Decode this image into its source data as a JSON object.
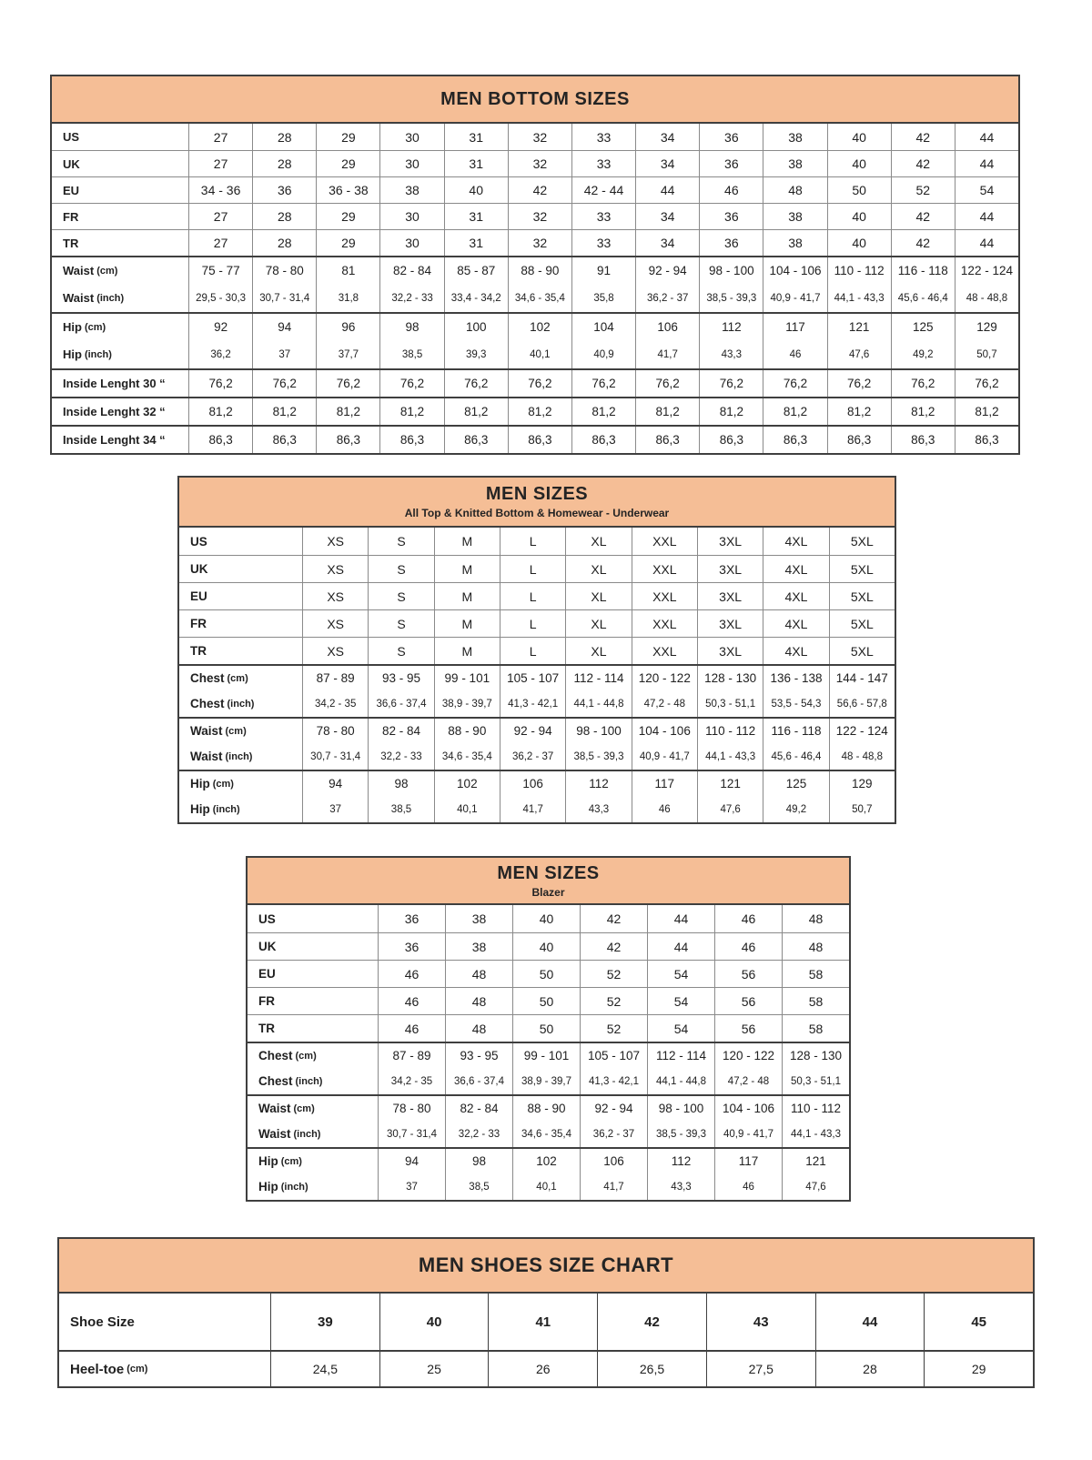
{
  "colors": {
    "header_bg": "#F5BE96",
    "text": "#212121",
    "border_dark": "#3f3f3f",
    "border_mid": "#8a8a8a"
  },
  "tables": [
    {
      "id": "men-bottom-sizes",
      "title": "MEN BOTTOM SIZES",
      "subtitle": "",
      "rows": [
        {
          "label": "US",
          "unit": "",
          "style": "size",
          "sep": "normal",
          "cells": [
            "27",
            "28",
            "29",
            "30",
            "31",
            "32",
            "33",
            "34",
            "36",
            "38",
            "40",
            "42",
            "44"
          ]
        },
        {
          "label": "UK",
          "unit": "",
          "style": "size",
          "sep": "normal",
          "cells": [
            "27",
            "28",
            "29",
            "30",
            "31",
            "32",
            "33",
            "34",
            "36",
            "38",
            "40",
            "42",
            "44"
          ]
        },
        {
          "label": "EU",
          "unit": "",
          "style": "size",
          "sep": "normal",
          "cells": [
            "34 - 36",
            "36",
            "36 - 38",
            "38",
            "40",
            "42",
            "42 - 44",
            "44",
            "46",
            "48",
            "50",
            "52",
            "54"
          ]
        },
        {
          "label": "FR",
          "unit": "",
          "style": "size",
          "sep": "normal",
          "cells": [
            "27",
            "28",
            "29",
            "30",
            "31",
            "32",
            "33",
            "34",
            "36",
            "38",
            "40",
            "42",
            "44"
          ]
        },
        {
          "label": "TR",
          "unit": "",
          "style": "size",
          "sep": "normal",
          "cells": [
            "27",
            "28",
            "29",
            "30",
            "31",
            "32",
            "33",
            "34",
            "36",
            "38",
            "40",
            "42",
            "44"
          ]
        },
        {
          "label": "Waist",
          "unit": "(cm)",
          "style": "cm",
          "sep": "thick",
          "cells": [
            "75 - 77",
            "78 - 80",
            "81",
            "82 - 84",
            "85 - 87",
            "88 - 90",
            "91",
            "92 - 94",
            "98 - 100",
            "104 - 106",
            "110 - 112",
            "116 - 118",
            "122 - 124"
          ]
        },
        {
          "label": "Waist",
          "unit": "(inch)",
          "style": "inch",
          "sep": "none",
          "cells": [
            "29,5 - 30,3",
            "30,7 - 31,4",
            "31,8",
            "32,2 - 33",
            "33,4 - 34,2",
            "34,6 - 35,4",
            "35,8",
            "36,2 - 37",
            "38,5 - 39,3",
            "40,9 - 41,7",
            "44,1 - 43,3",
            "45,6 - 46,4",
            "48 - 48,8"
          ]
        },
        {
          "label": "Hip",
          "unit": "(cm)",
          "style": "cm",
          "sep": "thick",
          "cells": [
            "92",
            "94",
            "96",
            "98",
            "100",
            "102",
            "104",
            "106",
            "112",
            "117",
            "121",
            "125",
            "129"
          ]
        },
        {
          "label": "Hip",
          "unit": "(inch)",
          "style": "inch",
          "sep": "none",
          "cells": [
            "36,2",
            "37",
            "37,7",
            "38,5",
            "39,3",
            "40,1",
            "40,9",
            "41,7",
            "43,3",
            "46",
            "47,6",
            "49,2",
            "50,7"
          ]
        },
        {
          "label": "Inside Lenght 30 “",
          "unit": "",
          "style": "cm",
          "sep": "thick",
          "cells": [
            "76,2",
            "76,2",
            "76,2",
            "76,2",
            "76,2",
            "76,2",
            "76,2",
            "76,2",
            "76,2",
            "76,2",
            "76,2",
            "76,2",
            "76,2"
          ]
        },
        {
          "label": "Inside Lenght 32 “",
          "unit": "",
          "style": "cm",
          "sep": "thick",
          "cells": [
            "81,2",
            "81,2",
            "81,2",
            "81,2",
            "81,2",
            "81,2",
            "81,2",
            "81,2",
            "81,2",
            "81,2",
            "81,2",
            "81,2",
            "81,2"
          ]
        },
        {
          "label": "Inside Lenght 34 “",
          "unit": "",
          "style": "cm",
          "sep": "thick",
          "cells": [
            "86,3",
            "86,3",
            "86,3",
            "86,3",
            "86,3",
            "86,3",
            "86,3",
            "86,3",
            "86,3",
            "86,3",
            "86,3",
            "86,3",
            "86,3"
          ]
        }
      ]
    },
    {
      "id": "men-sizes-top",
      "title": "MEN SIZES",
      "subtitle": "All Top & Knitted Bottom & Homewear - Underwear",
      "rows": [
        {
          "label": "US",
          "unit": "",
          "style": "size",
          "sep": "normal",
          "cells": [
            "XS",
            "S",
            "M",
            "L",
            "XL",
            "XXL",
            "3XL",
            "4XL",
            "5XL"
          ]
        },
        {
          "label": "UK",
          "unit": "",
          "style": "size",
          "sep": "normal",
          "cells": [
            "XS",
            "S",
            "M",
            "L",
            "XL",
            "XXL",
            "3XL",
            "4XL",
            "5XL"
          ]
        },
        {
          "label": "EU",
          "unit": "",
          "style": "size",
          "sep": "normal",
          "cells": [
            "XS",
            "S",
            "M",
            "L",
            "XL",
            "XXL",
            "3XL",
            "4XL",
            "5XL"
          ]
        },
        {
          "label": "FR",
          "unit": "",
          "style": "size",
          "sep": "normal",
          "cells": [
            "XS",
            "S",
            "M",
            "L",
            "XL",
            "XXL",
            "3XL",
            "4XL",
            "5XL"
          ]
        },
        {
          "label": "TR",
          "unit": "",
          "style": "size",
          "sep": "normal",
          "cells": [
            "XS",
            "S",
            "M",
            "L",
            "XL",
            "XXL",
            "3XL",
            "4XL",
            "5XL"
          ]
        },
        {
          "label": "Chest",
          "unit": "(cm)",
          "style": "cm",
          "sep": "thick",
          "cells": [
            "87 - 89",
            "93 - 95",
            "99 - 101",
            "105 - 107",
            "112 - 114",
            "120 - 122",
            "128 - 130",
            "136 - 138",
            "144 - 147"
          ]
        },
        {
          "label": "Chest",
          "unit": "(inch)",
          "style": "inch",
          "sep": "none",
          "cells": [
            "34,2 - 35",
            "36,6 - 37,4",
            "38,9 - 39,7",
            "41,3 - 42,1",
            "44,1 - 44,8",
            "47,2 - 48",
            "50,3 - 51,1",
            "53,5 - 54,3",
            "56,6 - 57,8"
          ]
        },
        {
          "label": "Waist",
          "unit": "(cm)",
          "style": "cm",
          "sep": "thick",
          "cells": [
            "78 - 80",
            "82 - 84",
            "88 - 90",
            "92 - 94",
            "98 - 100",
            "104 - 106",
            "110 - 112",
            "116 - 118",
            "122 - 124"
          ]
        },
        {
          "label": "Waist",
          "unit": "(inch)",
          "style": "inch",
          "sep": "none",
          "cells": [
            "30,7 - 31,4",
            "32,2 - 33",
            "34,6 - 35,4",
            "36,2 - 37",
            "38,5 - 39,3",
            "40,9 - 41,7",
            "44,1 - 43,3",
            "45,6 - 46,4",
            "48 - 48,8"
          ]
        },
        {
          "label": "Hip",
          "unit": "(cm)",
          "style": "cm",
          "sep": "thick",
          "cells": [
            "94",
            "98",
            "102",
            "106",
            "112",
            "117",
            "121",
            "125",
            "129"
          ]
        },
        {
          "label": "Hip",
          "unit": "(inch)",
          "style": "inch",
          "sep": "none",
          "cells": [
            "37",
            "38,5",
            "40,1",
            "41,7",
            "43,3",
            "46",
            "47,6",
            "49,2",
            "50,7"
          ]
        }
      ]
    },
    {
      "id": "men-sizes-blazer",
      "title": "MEN SIZES",
      "subtitle": "Blazer",
      "rows": [
        {
          "label": "US",
          "unit": "",
          "style": "size",
          "sep": "normal",
          "cells": [
            "36",
            "38",
            "40",
            "42",
            "44",
            "46",
            "48"
          ]
        },
        {
          "label": "UK",
          "unit": "",
          "style": "size",
          "sep": "normal",
          "cells": [
            "36",
            "38",
            "40",
            "42",
            "44",
            "46",
            "48"
          ]
        },
        {
          "label": "EU",
          "unit": "",
          "style": "size",
          "sep": "normal",
          "cells": [
            "46",
            "48",
            "50",
            "52",
            "54",
            "56",
            "58"
          ]
        },
        {
          "label": "FR",
          "unit": "",
          "style": "size",
          "sep": "normal",
          "cells": [
            "46",
            "48",
            "50",
            "52",
            "54",
            "56",
            "58"
          ]
        },
        {
          "label": "TR",
          "unit": "",
          "style": "size",
          "sep": "normal",
          "cells": [
            "46",
            "48",
            "50",
            "52",
            "54",
            "56",
            "58"
          ]
        },
        {
          "label": "Chest",
          "unit": "(cm)",
          "style": "cm",
          "sep": "thick",
          "cells": [
            "87 - 89",
            "93 - 95",
            "99 - 101",
            "105 - 107",
            "112 - 114",
            "120 - 122",
            "128 - 130"
          ]
        },
        {
          "label": "Chest",
          "unit": "(inch)",
          "style": "inch",
          "sep": "none",
          "cells": [
            "34,2 - 35",
            "36,6 - 37,4",
            "38,9 - 39,7",
            "41,3 - 42,1",
            "44,1 - 44,8",
            "47,2 - 48",
            "50,3 - 51,1"
          ]
        },
        {
          "label": "Waist",
          "unit": "(cm)",
          "style": "cm",
          "sep": "thick",
          "cells": [
            "78 - 80",
            "82 - 84",
            "88 - 90",
            "92 - 94",
            "98 - 100",
            "104 - 106",
            "110 - 112"
          ]
        },
        {
          "label": "Waist",
          "unit": "(inch)",
          "style": "inch",
          "sep": "none",
          "cells": [
            "30,7 - 31,4",
            "32,2 - 33",
            "34,6 - 35,4",
            "36,2 - 37",
            "38,5 - 39,3",
            "40,9 - 41,7",
            "44,1 - 43,3"
          ]
        },
        {
          "label": "Hip",
          "unit": "(cm)",
          "style": "cm",
          "sep": "thick",
          "cells": [
            "94",
            "98",
            "102",
            "106",
            "112",
            "117",
            "121"
          ]
        },
        {
          "label": "Hip",
          "unit": "(inch)",
          "style": "inch",
          "sep": "none",
          "cells": [
            "37",
            "38,5",
            "40,1",
            "41,7",
            "43,3",
            "46",
            "47,6"
          ]
        }
      ]
    },
    {
      "id": "men-shoes-size-chart",
      "title": "MEN SHOES SIZE CHART",
      "subtitle": "",
      "rows": [
        {
          "label": "Shoe Size",
          "unit": "",
          "style": "shoe",
          "sep": "normal",
          "cells": [
            "39",
            "40",
            "41",
            "42",
            "43",
            "44",
            "45"
          ]
        },
        {
          "label": "Heel-toe",
          "unit": "(cm)",
          "style": "heel",
          "sep": "normal",
          "cells": [
            "24,5",
            "25",
            "26",
            "26,5",
            "27,5",
            "28",
            "29"
          ]
        }
      ]
    }
  ]
}
